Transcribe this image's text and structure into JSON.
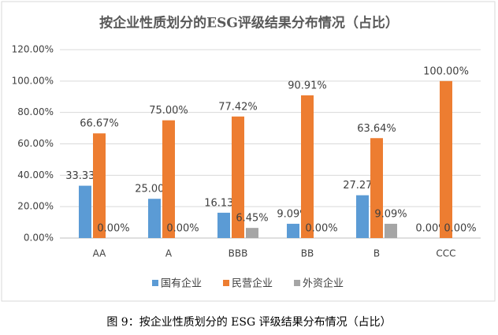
{
  "chart_data": {
    "type": "bar",
    "title": "按企业性质划分的ESG评级结果分布情况（占比）",
    "categories": [
      "AA",
      "A",
      "BBB",
      "BB",
      "B",
      "CCC"
    ],
    "series": [
      {
        "name": "国有企业",
        "color": "#5b9bd5",
        "values": [
          33.33,
          25.0,
          16.13,
          9.09,
          27.27,
          0.0
        ],
        "value_labels": [
          "33.33%",
          "25.00%",
          "16.13%",
          "9.09%",
          "27.27%",
          "0.00%"
        ]
      },
      {
        "name": "民营企业",
        "color": "#ed7d31",
        "values": [
          66.67,
          75.0,
          77.42,
          90.91,
          63.64,
          100.0
        ],
        "value_labels": [
          "66.67%",
          "75.00%",
          "77.42%",
          "90.91%",
          "63.64%",
          "100.00%"
        ]
      },
      {
        "name": "外资企业",
        "color": "#a5a5a5",
        "values": [
          0.0,
          0.0,
          6.45,
          0.0,
          9.09,
          0.0
        ],
        "value_labels": [
          "0.00%",
          "0.00%",
          "6.45%",
          "0.00%",
          "9.09%",
          "0.00%"
        ]
      }
    ],
    "ylim": [
      0,
      120
    ],
    "yticks": [
      {
        "value": 0,
        "label": "0.00%"
      },
      {
        "value": 20,
        "label": "20.00%"
      },
      {
        "value": 40,
        "label": "40.00%"
      },
      {
        "value": 60,
        "label": "60.00%"
      },
      {
        "value": 80,
        "label": "80.00%"
      },
      {
        "value": 100,
        "label": "100.00%"
      },
      {
        "value": 120,
        "label": "120.00%"
      }
    ],
    "grid": true,
    "legend": "bottom"
  },
  "caption": "图 9：按企业性质划分的 ESG 评级结果分布情况（占比）"
}
